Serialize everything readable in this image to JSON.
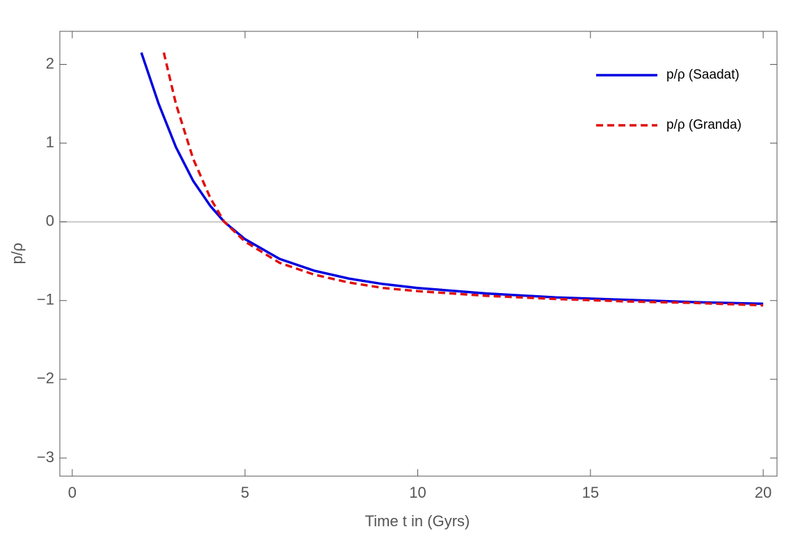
{
  "chart_data": {
    "type": "line",
    "xlabel": "Time t in (Gyrs)",
    "ylabel": "p/ρ",
    "xlim": [
      -0.36,
      20.4
    ],
    "ylim": [
      -3.23,
      2.42
    ],
    "xticks": [
      0,
      5,
      10,
      15,
      20
    ],
    "yticks": [
      {
        "value": -3,
        "label": "−3"
      },
      {
        "value": -2,
        "label": "−2"
      },
      {
        "value": -1,
        "label": "−1"
      },
      0,
      1,
      2
    ],
    "legend": "upper right",
    "series": [
      {
        "name": "p/ρ (Saadat)",
        "color": "#0000e0",
        "dash": false,
        "x": [
          2,
          2.5,
          3,
          3.5,
          4,
          4.4,
          5,
          6,
          7,
          8,
          9,
          10,
          12,
          14,
          16,
          18,
          20
        ],
        "values": [
          2.15,
          1.5,
          0.95,
          0.52,
          0.2,
          0,
          -0.22,
          -0.47,
          -0.62,
          -0.72,
          -0.79,
          -0.84,
          -0.91,
          -0.96,
          -0.99,
          -1.02,
          -1.04
        ]
      },
      {
        "name": "p/ρ (Granda)",
        "color": "#e01010",
        "dash": true,
        "x": [
          2.65,
          3,
          3.5,
          4,
          4.4,
          5,
          6,
          7,
          8,
          9,
          10,
          12,
          14,
          16,
          18,
          20
        ],
        "values": [
          2.15,
          1.5,
          0.8,
          0.3,
          0,
          -0.25,
          -0.52,
          -0.67,
          -0.77,
          -0.84,
          -0.88,
          -0.94,
          -0.98,
          -1.01,
          -1.03,
          -1.06
        ]
      }
    ]
  }
}
